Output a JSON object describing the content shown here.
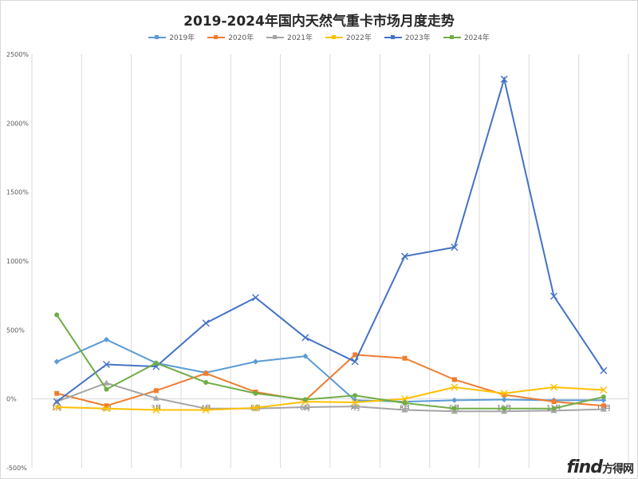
{
  "chart_data": {
    "type": "line",
    "title": "2019-2024年国内天然气重卡市场月度走势",
    "categories": [
      "1月",
      "2月",
      "3月",
      "4月",
      "5月",
      "6月",
      "7月",
      "8月",
      "9月",
      "10月",
      "11月",
      "12月"
    ],
    "y_ticks": [
      "2500%",
      "2000%",
      "1500%",
      "1000%",
      "500%",
      "0%",
      "-500%"
    ],
    "ylim": [
      -500,
      2500
    ],
    "grid": "vertical",
    "legend_position": "top",
    "series": [
      {
        "name": "2019年",
        "color": "#5b9bd5",
        "marker": "diamond",
        "values": [
          270,
          430,
          260,
          190,
          270,
          310,
          -10,
          -20,
          -10,
          -5,
          -10,
          -10
        ]
      },
      {
        "name": "2020年",
        "color": "#ed7d31",
        "marker": "square",
        "values": [
          40,
          -50,
          60,
          185,
          50,
          -10,
          320,
          295,
          140,
          30,
          -20,
          -50
        ]
      },
      {
        "name": "2021年",
        "color": "#a5a5a5",
        "marker": "triangle",
        "values": [
          -20,
          115,
          5,
          -70,
          -70,
          -60,
          -55,
          -80,
          -90,
          -90,
          -85,
          -75
        ]
      },
      {
        "name": "2022年",
        "color": "#ffc000",
        "marker": "x",
        "values": [
          -60,
          -70,
          -80,
          -80,
          -65,
          -20,
          -25,
          0,
          85,
          40,
          85,
          65
        ]
      },
      {
        "name": "2023年",
        "color": "#4472c4",
        "marker": "x",
        "values": [
          -20,
          250,
          235,
          550,
          735,
          445,
          270,
          1035,
          1100,
          2320,
          745,
          205
        ]
      },
      {
        "name": "2024年",
        "color": "#70ad47",
        "marker": "circle",
        "values": [
          610,
          70,
          260,
          120,
          40,
          -5,
          25,
          -30,
          -70,
          -70,
          -70,
          15
        ]
      }
    ]
  },
  "watermark": {
    "brand": "find",
    "suffix": "方得网"
  }
}
